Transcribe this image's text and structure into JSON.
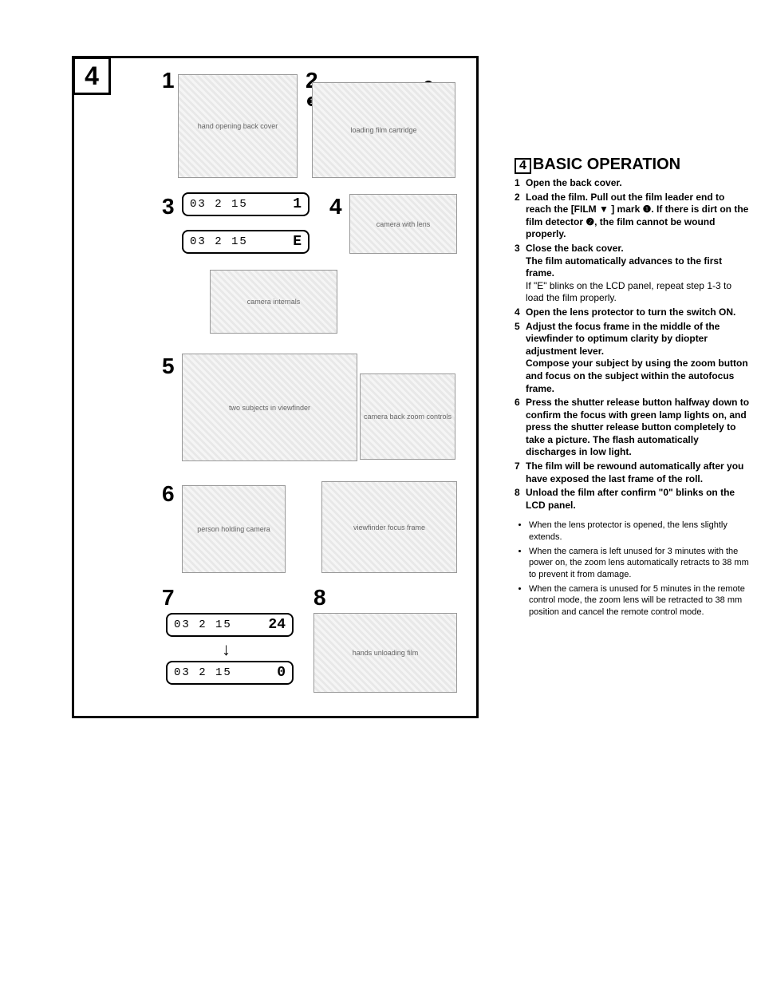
{
  "section_number": "4",
  "section_title": "BASIC OPERATION",
  "diagram": {
    "badge": "4",
    "steps": {
      "s1": "1",
      "s2": "2",
      "s3": "3",
      "s4": "4",
      "s5": "5",
      "s6": "6",
      "s7": "7",
      "s8": "8"
    },
    "callouts": {
      "c1": "1",
      "c2": "2"
    },
    "lcd": {
      "date": "03 2 15",
      "count_1": "1",
      "err": "E",
      "count_24": "24",
      "count_0": "0"
    },
    "illo_labels": {
      "hand_open": "hand opening back cover",
      "film_load": "loading film cartridge",
      "camera_closed": "camera with lens",
      "camera_open": "camera internals",
      "people": "two subjects in viewfinder",
      "camera_back": "camera back zoom controls",
      "person_shoot": "person holding camera",
      "viewfinder": "viewfinder focus frame",
      "hands_unload": "hands unloading film"
    }
  },
  "steps": [
    {
      "n": "1",
      "main": "Open the back cover."
    },
    {
      "n": "2",
      "main": "Load the film. Pull out the film leader end to reach the [FILM ▼ ] mark ❶. If there is dirt on the film detector ❷, the film cannot be wound properly."
    },
    {
      "n": "3",
      "main": "Close the back cover.\nThe film automatically advances to the first frame.",
      "sub": "If \"E\" blinks on the LCD panel, repeat step 1-3 to load the film properly."
    },
    {
      "n": "4",
      "main": "Open the lens protector to turn the switch ON."
    },
    {
      "n": "5",
      "main": "Adjust the focus frame in the middle of the viewfinder to optimum clarity by diopter adjustment lever.\nCompose your subject by using the zoom button and focus on the subject within the autofocus frame."
    },
    {
      "n": "6",
      "main": "Press the shutter release button halfway down to confirm the focus with green lamp lights on, and press the shutter release button completely to take a picture. The flash automatically discharges in low light."
    },
    {
      "n": "7",
      "main": "The film will be rewound automatically after you have exposed the last frame of the roll."
    },
    {
      "n": "8",
      "main": "Unload the film after confirm \"0\" blinks on the LCD panel."
    }
  ],
  "notes": [
    "When the lens protector is opened, the lens slightly extends.",
    "When the camera is left unused for 3 minutes with the power on, the zoom lens automatically retracts to 38 mm to prevent it from damage.",
    "When the camera is unused for 5 minutes in the remote control mode, the zoom lens will be retracted to 38 mm position and cancel the remote control mode."
  ],
  "style": {
    "page_bg": "#ffffff",
    "text_color": "#000000",
    "border_color": "#000000",
    "title_fontsize": 20,
    "body_fontsize": 12,
    "notes_fontsize": 11,
    "stepnum_fontsize": 28
  }
}
